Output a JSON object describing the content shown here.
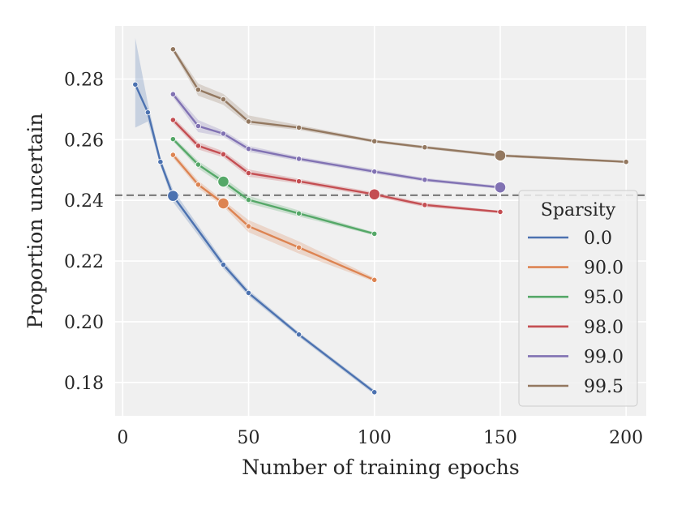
{
  "chart_data": {
    "type": "line",
    "title": "",
    "xlabel": "Number of training epochs",
    "ylabel": "Proportion uncertain",
    "xlim": [
      -3,
      208
    ],
    "ylim": [
      0.169,
      0.2975
    ],
    "xticks": [
      0,
      50,
      100,
      150,
      200
    ],
    "xtick_labels": [
      "0",
      "50",
      "100",
      "150",
      "200"
    ],
    "yticks": [
      0.18,
      0.2,
      0.22,
      0.24,
      0.26,
      0.28
    ],
    "ytick_labels": [
      "0.18",
      "0.20",
      "0.22",
      "0.24",
      "0.26",
      "0.28"
    ],
    "grid": true,
    "reference_line": {
      "y": 0.2417,
      "style": "dashed",
      "color": "#808080"
    },
    "legend": {
      "title": "Sparsity",
      "position": "lower-right"
    },
    "series": [
      {
        "name": "0.0",
        "color": "#4c72b0",
        "x": [
          5,
          10,
          15,
          20,
          40,
          50,
          70,
          100
        ],
        "y": [
          0.2782,
          0.269,
          0.2527,
          0.2415,
          0.2188,
          0.2095,
          0.1958,
          0.1768
        ],
        "band_lower": [
          0.264,
          0.266,
          0.2515,
          0.2395,
          0.2175,
          0.2085,
          0.195,
          0.176
        ],
        "band_upper": [
          0.2935,
          0.272,
          0.254,
          0.2435,
          0.22,
          0.2105,
          0.1965,
          0.1775
        ],
        "highlight": {
          "x": 20,
          "y": 0.2415
        }
      },
      {
        "name": "90.0",
        "color": "#dd8452",
        "x": [
          20,
          30,
          40,
          50,
          70,
          100
        ],
        "y": [
          0.255,
          0.2452,
          0.239,
          0.2315,
          0.2245,
          0.2138
        ],
        "band_lower": [
          0.254,
          0.244,
          0.238,
          0.2295,
          0.2225,
          0.2132
        ],
        "band_upper": [
          0.256,
          0.2465,
          0.24,
          0.2335,
          0.2265,
          0.2145
        ],
        "highlight": {
          "x": 40,
          "y": 0.239
        }
      },
      {
        "name": "95.0",
        "color": "#55a868",
        "x": [
          20,
          30,
          40,
          50,
          70,
          100
        ],
        "y": [
          0.2602,
          0.2518,
          0.2462,
          0.2402,
          0.2357,
          0.229
        ],
        "band_lower": [
          0.2595,
          0.2505,
          0.245,
          0.239,
          0.2347,
          0.2285
        ],
        "band_upper": [
          0.261,
          0.253,
          0.2475,
          0.2415,
          0.2367,
          0.2295
        ],
        "highlight": {
          "x": 40,
          "y": 0.2462
        }
      },
      {
        "name": "98.0",
        "color": "#c44e52",
        "x": [
          20,
          30,
          40,
          50,
          70,
          100,
          120,
          150
        ],
        "y": [
          0.2665,
          0.258,
          0.2552,
          0.249,
          0.2463,
          0.242,
          0.2385,
          0.2362
        ],
        "band_lower": [
          0.2655,
          0.2568,
          0.2542,
          0.2478,
          0.2455,
          0.2413,
          0.2378,
          0.2358
        ],
        "band_upper": [
          0.2675,
          0.2592,
          0.2562,
          0.2502,
          0.2471,
          0.2427,
          0.2392,
          0.2366
        ],
        "highlight": {
          "x": 100,
          "y": 0.242
        }
      },
      {
        "name": "99.0",
        "color": "#8172b3",
        "x": [
          20,
          30,
          40,
          50,
          70,
          100,
          120,
          150
        ],
        "y": [
          0.275,
          0.2645,
          0.262,
          0.257,
          0.2537,
          0.2495,
          0.2468,
          0.2443
        ],
        "band_lower": [
          0.274,
          0.2625,
          0.261,
          0.256,
          0.253,
          0.2488,
          0.2462,
          0.2438
        ],
        "band_upper": [
          0.276,
          0.2665,
          0.263,
          0.258,
          0.2544,
          0.2502,
          0.2474,
          0.2448
        ],
        "highlight": {
          "x": 150,
          "y": 0.2443
        }
      },
      {
        "name": "99.5",
        "color": "#937860",
        "x": [
          20,
          30,
          40,
          50,
          70,
          100,
          120,
          150,
          200
        ],
        "y": [
          0.2898,
          0.2765,
          0.2733,
          0.266,
          0.264,
          0.2595,
          0.2575,
          0.2548,
          0.2527
        ],
        "band_lower": [
          0.289,
          0.2745,
          0.2715,
          0.265,
          0.2632,
          0.259,
          0.257,
          0.2543,
          0.2523
        ],
        "band_upper": [
          0.2906,
          0.2785,
          0.2751,
          0.268,
          0.2648,
          0.26,
          0.258,
          0.2553,
          0.2531
        ],
        "highlight": {
          "x": 150,
          "y": 0.2548
        }
      }
    ]
  }
}
